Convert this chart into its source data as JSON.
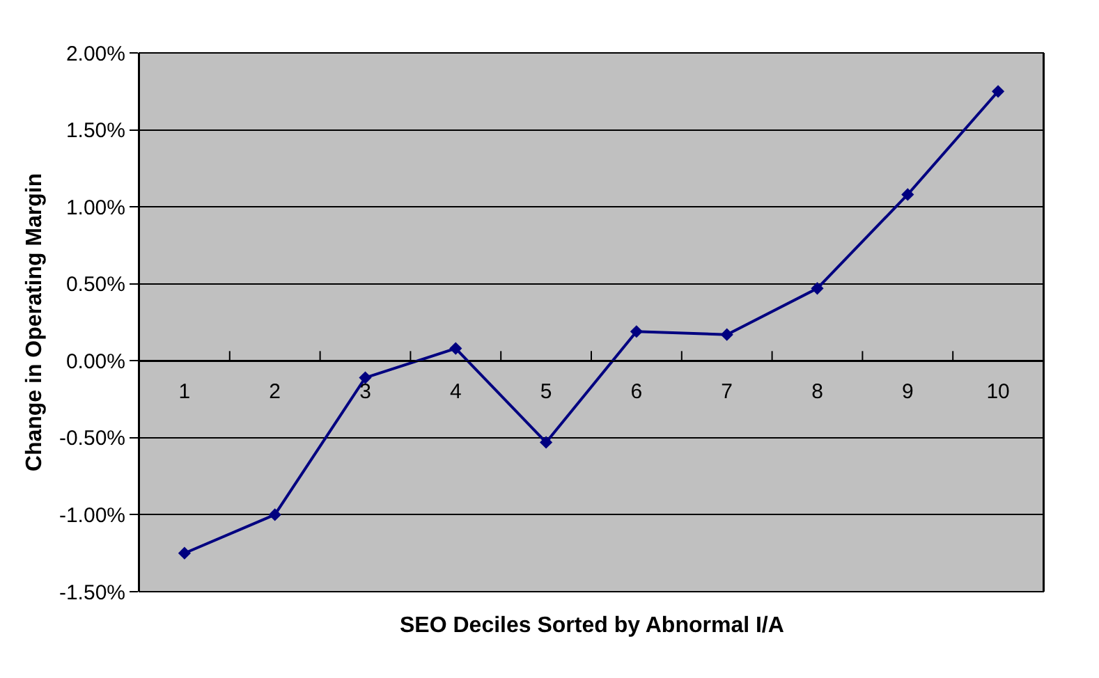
{
  "chart_data": {
    "type": "line",
    "xlabel": "SEO Deciles Sorted by Abnormal I/A",
    "ylabel": "Change in Operating Margin",
    "categories": [
      "1",
      "2",
      "3",
      "4",
      "5",
      "6",
      "7",
      "8",
      "9",
      "10"
    ],
    "series": [
      {
        "color": "#000080",
        "values": [
          -1.25,
          -1.0,
          -0.11,
          0.08,
          -0.53,
          0.19,
          0.17,
          0.47,
          1.08,
          1.75
        ]
      }
    ],
    "ylim": [
      -1.5,
      2.0
    ],
    "yticks": [
      {
        "value": -1.5,
        "label": "-1.50%"
      },
      {
        "value": -1.0,
        "label": "-1.00%"
      },
      {
        "value": -0.5,
        "label": "-0.50%"
      },
      {
        "value": 0,
        "label": "0.00%"
      },
      {
        "value": 0.5,
        "label": "0.50%"
      },
      {
        "value": 1.0,
        "label": "1.00%"
      },
      {
        "value": 1.5,
        "label": "1.50%"
      },
      {
        "value": 2.0,
        "label": "2.00%"
      }
    ],
    "grid": "y",
    "marker": "diamond",
    "line_style": "solid"
  }
}
